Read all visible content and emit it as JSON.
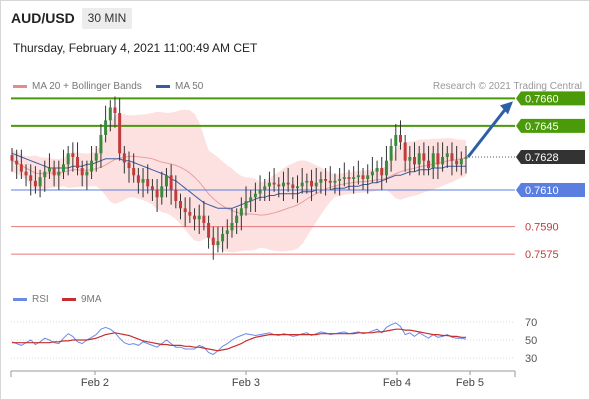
{
  "header": {
    "symbol": "AUD/USD",
    "timeframe": "30 MIN",
    "datetime": "Thursday, February 4, 2021 11:00:49 AM CET",
    "credit": "Research © 2021 Trading Central"
  },
  "legend": {
    "ma20_bb": "MA 20 + Bollinger Bands",
    "ma50": "MA 50",
    "rsi": "RSI",
    "ma9": "9MA"
  },
  "colors": {
    "resistance": "#4a9a0a",
    "support_blue": "#5b7fe0",
    "support_red": "#e87878",
    "bollinger_fill": "#fde0e0",
    "ma20": "#e8a0a0",
    "ma50": "#3b5ba0",
    "up_candle": "#3b8a3b",
    "down_candle": "#c23b3b",
    "rsi": "#6a8ae8",
    "rsi_ma": "#c43030",
    "current": "#333333",
    "arrow": "#2d5fa8"
  },
  "chart_data": [
    {
      "type": "candlestick",
      "title": "AUD/USD",
      "timeframe": "30 MIN",
      "x_tick_labels": [
        "Feb 2",
        "Feb 3",
        "Feb 4",
        "Feb 5"
      ],
      "ylim": [
        0.755,
        0.767
      ],
      "current_price": 0.7628,
      "levels": [
        {
          "label": "0.7660",
          "value": 0.766,
          "kind": "resistance"
        },
        {
          "label": "0.7645",
          "value": 0.7645,
          "kind": "resistance"
        },
        {
          "label": "0.7628",
          "value": 0.7628,
          "kind": "current"
        },
        {
          "label": "0.7610",
          "value": 0.761,
          "kind": "support_blue"
        },
        {
          "label": "0.7590",
          "value": 0.759,
          "kind": "support_red"
        },
        {
          "label": "0.7575",
          "value": 0.7575,
          "kind": "support_red"
        }
      ],
      "closes": [
        0.7626,
        0.7624,
        0.762,
        0.7618,
        0.7615,
        0.7612,
        0.7617,
        0.762,
        0.7622,
        0.7618,
        0.762,
        0.7624,
        0.763,
        0.7628,
        0.7622,
        0.7618,
        0.762,
        0.7626,
        0.763,
        0.764,
        0.7648,
        0.7655,
        0.7652,
        0.763,
        0.7625,
        0.7622,
        0.7618,
        0.7614,
        0.7616,
        0.7612,
        0.761,
        0.7606,
        0.7612,
        0.7618,
        0.761,
        0.7604,
        0.76,
        0.7598,
        0.7596,
        0.7594,
        0.7596,
        0.7592,
        0.7584,
        0.758,
        0.7582,
        0.7586,
        0.7588,
        0.7592,
        0.7596,
        0.76,
        0.7604,
        0.7606,
        0.7608,
        0.761,
        0.7612,
        0.7614,
        0.7613,
        0.7612,
        0.7614,
        0.7613,
        0.7611,
        0.7612,
        0.7614,
        0.7615,
        0.7612,
        0.7614,
        0.7616,
        0.7615,
        0.7614,
        0.7615,
        0.7616,
        0.7617,
        0.7616,
        0.7617,
        0.7618,
        0.7616,
        0.7618,
        0.762,
        0.7622,
        0.7618,
        0.7626,
        0.7634,
        0.764,
        0.7636,
        0.7626,
        0.7628,
        0.7624,
        0.763,
        0.7626,
        0.7622,
        0.763,
        0.7624,
        0.7628,
        0.763,
        0.7626,
        0.7624,
        0.7627,
        0.7628
      ],
      "ma50": [
        0.763,
        0.7629,
        0.7628,
        0.7627,
        0.7626,
        0.7625,
        0.7624,
        0.7623,
        0.7622,
        0.7622,
        0.7622,
        0.7622,
        0.7622,
        0.7623,
        0.7623,
        0.7623,
        0.7624,
        0.7624,
        0.7625,
        0.7626,
        0.7627,
        0.7627,
        0.7627,
        0.7627,
        0.7626,
        0.7626,
        0.7625,
        0.7624,
        0.7623,
        0.7622,
        0.7621,
        0.762,
        0.7619,
        0.7618,
        0.7616,
        0.7615,
        0.7613,
        0.7611,
        0.7609,
        0.7607,
        0.7605,
        0.7603,
        0.7602,
        0.7601,
        0.76,
        0.76,
        0.76,
        0.76,
        0.7601,
        0.7602,
        0.7603,
        0.7604,
        0.7605,
        0.7606,
        0.7606,
        0.7607,
        0.7607,
        0.7608,
        0.7608,
        0.7608,
        0.7608,
        0.7608,
        0.7609,
        0.7609,
        0.7609,
        0.761,
        0.761,
        0.761,
        0.761,
        0.7611,
        0.7611,
        0.7611,
        0.7612,
        0.7612,
        0.7612,
        0.7613,
        0.7613,
        0.7614,
        0.7614,
        0.7615,
        0.7616,
        0.7617,
        0.7618,
        0.7618,
        0.7619,
        0.762,
        0.762,
        0.7621,
        0.7621,
        0.7621,
        0.7622,
        0.7622,
        0.7622,
        0.7623,
        0.7623,
        0.7623,
        0.7623,
        0.7623
      ]
    },
    {
      "type": "line",
      "name": "RSI",
      "y_tick_labels": [
        "70",
        "50",
        "30"
      ],
      "ylim": [
        20,
        80
      ],
      "rsi": [
        48,
        46,
        44,
        47,
        50,
        45,
        48,
        52,
        50,
        47,
        46,
        52,
        57,
        54,
        48,
        46,
        50,
        53,
        56,
        62,
        64,
        62,
        58,
        52,
        47,
        45,
        46,
        44,
        48,
        46,
        44,
        42,
        46,
        50,
        46,
        42,
        42,
        40,
        40,
        40,
        44,
        42,
        36,
        34,
        38,
        43,
        46,
        50,
        53,
        55,
        57,
        56,
        55,
        56,
        57,
        58,
        56,
        55,
        57,
        56,
        54,
        55,
        57,
        58,
        55,
        57,
        59,
        58,
        56,
        57,
        58,
        59,
        57,
        58,
        59,
        57,
        58,
        60,
        62,
        58,
        64,
        67,
        69,
        65,
        56,
        58,
        54,
        58,
        55,
        52,
        56,
        53,
        54,
        56,
        53,
        52,
        52,
        51
      ],
      "ma9": [
        47,
        47,
        47,
        47,
        47,
        47,
        47,
        47,
        47,
        48,
        48,
        49,
        49,
        50,
        50,
        50,
        50,
        51,
        52,
        54,
        56,
        57,
        58,
        57,
        56,
        55,
        53,
        51,
        49,
        48,
        47,
        46,
        45,
        45,
        44,
        44,
        44,
        43,
        43,
        42,
        42,
        41,
        40,
        39,
        38,
        39,
        40,
        42,
        44,
        46,
        49,
        51,
        53,
        54,
        55,
        56,
        56,
        56,
        56,
        56,
        56,
        56,
        56,
        56,
        56,
        56,
        57,
        57,
        57,
        57,
        57,
        57,
        57,
        57,
        58,
        58,
        58,
        58,
        59,
        59,
        60,
        61,
        62,
        62,
        61,
        61,
        60,
        59,
        58,
        57,
        56,
        56,
        55,
        55,
        54,
        54,
        53,
        53
      ]
    }
  ]
}
